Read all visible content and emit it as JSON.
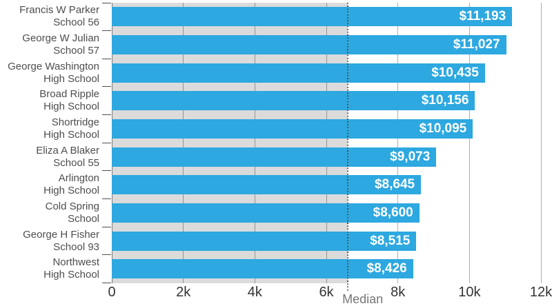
{
  "chart_data": {
    "type": "bar",
    "orientation": "horizontal",
    "title": "",
    "xlabel": "",
    "ylabel": "",
    "xlim": [
      0,
      12000
    ],
    "grid": true,
    "x_tick_labels": [
      "0",
      "2k",
      "4k",
      "6k",
      "8k",
      "10k",
      "12k"
    ],
    "x_tick_values": [
      0,
      2000,
      4000,
      6000,
      8000,
      10000,
      12000
    ],
    "median_line": {
      "label": "Median",
      "value": 6600
    },
    "median_reference_bar_value": 6600,
    "rows": [
      {
        "label_line1": "Francis W Parker",
        "label_line2": "School 56",
        "value": 11193,
        "value_label": "$11,193"
      },
      {
        "label_line1": "George W Julian",
        "label_line2": "School 57",
        "value": 11027,
        "value_label": "$11,027"
      },
      {
        "label_line1": "George Washington",
        "label_line2": "High School",
        "value": 10435,
        "value_label": "$10,435"
      },
      {
        "label_line1": "Broad Ripple",
        "label_line2": "High School",
        "value": 10156,
        "value_label": "$10,156"
      },
      {
        "label_line1": "Shortridge",
        "label_line2": "High School",
        "value": 10095,
        "value_label": "$10,095"
      },
      {
        "label_line1": "Eliza A Blaker",
        "label_line2": "School 55",
        "value": 9073,
        "value_label": "$9,073"
      },
      {
        "label_line1": "Arlington",
        "label_line2": "High School",
        "value": 8645,
        "value_label": "$8,645"
      },
      {
        "label_line1": "Cold Spring",
        "label_line2": "School",
        "value": 8600,
        "value_label": "$8,600"
      },
      {
        "label_line1": "George H Fisher",
        "label_line2": "School 93",
        "value": 8515,
        "value_label": "$8,515"
      },
      {
        "label_line1": "Northwest",
        "label_line2": "High School",
        "value": 8426,
        "value_label": "$8,426"
      }
    ],
    "colors": {
      "bar": "#2DA8E0",
      "median_bar": "#DBDBDB",
      "gridline_alpha": "rgba(0,0,0,0.32)",
      "axis": "#4D4D4D",
      "value_text": "#FFFFFF",
      "category_text": "#4D4D4D",
      "tick_text": "#333333",
      "median_text": "#757575"
    }
  }
}
